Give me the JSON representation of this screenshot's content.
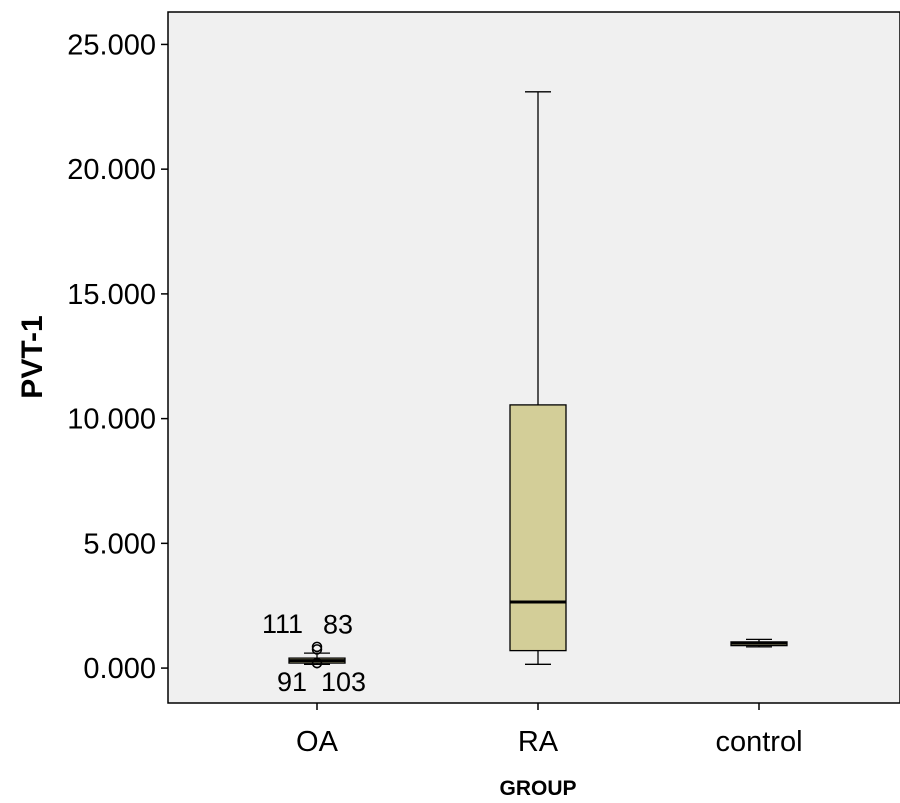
{
  "chart_data": {
    "type": "boxplot",
    "xlabel": "GROUP",
    "ylabel": "PVT-1",
    "ylim": [
      -1.4,
      26.3
    ],
    "yticks": [
      0,
      5,
      10,
      15,
      20,
      25
    ],
    "ytick_labels": [
      "0.000",
      "5.000",
      "10.000",
      "15.000",
      "20.000",
      "25.000"
    ],
    "categories": [
      "OA",
      "RA",
      "control"
    ],
    "boxes": [
      {
        "category": "OA",
        "whisker_low": 0.15,
        "q1": 0.2,
        "median": 0.3,
        "q3": 0.4,
        "whisker_high": 0.6
      },
      {
        "category": "RA",
        "whisker_low": 0.15,
        "q1": 0.7,
        "median": 2.65,
        "q3": 10.55,
        "whisker_high": 23.1
      },
      {
        "category": "control",
        "whisker_low": 0.85,
        "q1": 0.9,
        "median": 1.0,
        "q3": 1.05,
        "whisker_high": 1.15
      }
    ],
    "outliers": [
      {
        "category": "OA",
        "value": 0.85,
        "label": "111"
      },
      {
        "category": "OA",
        "value": 0.75,
        "label": "83"
      },
      {
        "category": "OA",
        "value": 0.2,
        "label": "91"
      },
      {
        "category": "OA",
        "value": 0.2,
        "label": "103"
      }
    ],
    "colors": {
      "plot_background": "#f0f0f0",
      "box_fill": "#d3ce98",
      "line": "#000000"
    },
    "grid": false
  }
}
